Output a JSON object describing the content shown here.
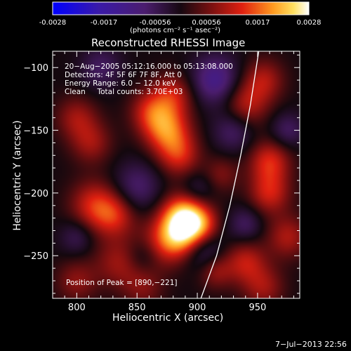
{
  "colorbar": {
    "ticks": [
      "-0.0028",
      "-0.0017",
      "-0.00056",
      "0.00056",
      "0.0017",
      "0.0028"
    ],
    "unit_label": "(photons cm⁻² s⁻¹ asec⁻²)"
  },
  "chart_data": {
    "type": "heatmap",
    "title": "Reconstructed RHESSI Image",
    "xlabel": "Heliocentric X (arcsec)",
    "ylabel": "Heliocentric Y (arcsec)",
    "xlim": [
      780,
      985
    ],
    "ylim": [
      -284,
      -87
    ],
    "xticks": [
      800,
      850,
      900,
      950
    ],
    "yticks": [
      -100,
      -150,
      -200,
      -250
    ],
    "xtick_labels": [
      "800",
      "850",
      "900",
      "950"
    ],
    "ytick_labels": [
      "−100",
      "−150",
      "−200",
      "−250"
    ],
    "color_range": [
      -0.0028,
      0.0028
    ],
    "annotations": [
      "20−Aug−2005 05:12:16.000 to 05:13:08.000",
      "Detectors: 4F 5F 6F 7F 8F, Att 0",
      "Energy Range: 6.0 − 12.0 keV",
      "Clean     Total counts: 3.70E+03"
    ],
    "peak_label": "Position of Peak = [890,−221]",
    "peak": [
      890,
      -221
    ],
    "limb_curve": [
      [
        903,
        -284
      ],
      [
        916,
        -250
      ],
      [
        927,
        -210
      ],
      [
        936,
        -170
      ],
      [
        944,
        -130
      ],
      [
        951,
        -87
      ]
    ],
    "sources": [
      {
        "x": 890,
        "y": -221,
        "v": 0.0028,
        "r": 13
      },
      {
        "x": 886,
        "y": -236,
        "v": 0.0012,
        "r": 12
      },
      {
        "x": 870,
        "y": -240,
        "v": 0.0009,
        "r": 14
      },
      {
        "x": 904,
        "y": -227,
        "v": 0.0009,
        "r": 10
      },
      {
        "x": 815,
        "y": -210,
        "v": 0.0012,
        "r": 14
      },
      {
        "x": 832,
        "y": -218,
        "v": 0.001,
        "r": 12
      },
      {
        "x": 875,
        "y": -150,
        "v": 0.0016,
        "r": 13
      },
      {
        "x": 885,
        "y": -170,
        "v": 0.0011,
        "r": 12
      },
      {
        "x": 862,
        "y": -135,
        "v": 0.0011,
        "r": 12
      },
      {
        "x": 880,
        "y": -122,
        "v": 0.001,
        "r": 12
      },
      {
        "x": 940,
        "y": -130,
        "v": 0.001,
        "r": 13
      },
      {
        "x": 955,
        "y": -110,
        "v": 0.0009,
        "r": 12
      },
      {
        "x": 960,
        "y": -175,
        "v": 0.0012,
        "r": 12
      },
      {
        "x": 960,
        "y": -200,
        "v": 0.0011,
        "r": 12
      },
      {
        "x": 975,
        "y": -235,
        "v": 0.0009,
        "r": 12
      },
      {
        "x": 940,
        "y": -255,
        "v": 0.001,
        "r": 12
      },
      {
        "x": 955,
        "y": -275,
        "v": 0.0008,
        "r": 12
      },
      {
        "x": 800,
        "y": -140,
        "v": 0.0008,
        "r": 12
      },
      {
        "x": 812,
        "y": -160,
        "v": 0.0008,
        "r": 12
      },
      {
        "x": 835,
        "y": -255,
        "v": 0.0008,
        "r": 14
      },
      {
        "x": 800,
        "y": -270,
        "v": 0.0007,
        "r": 12
      },
      {
        "x": 915,
        "y": -262,
        "v": 0.0008,
        "r": 10
      },
      {
        "x": 855,
        "y": -275,
        "v": 0.0006,
        "r": 12
      },
      {
        "x": 920,
        "y": -185,
        "v": 0.0006,
        "r": 10
      },
      {
        "x": 915,
        "y": -110,
        "v": -0.0012,
        "r": 14
      },
      {
        "x": 850,
        "y": -195,
        "v": -0.0008,
        "r": 14
      },
      {
        "x": 905,
        "y": -245,
        "v": -0.0009,
        "r": 12
      },
      {
        "x": 930,
        "y": -150,
        "v": -0.0008,
        "r": 12
      },
      {
        "x": 820,
        "y": -100,
        "v": -0.0007,
        "r": 12
      },
      {
        "x": 975,
        "y": -150,
        "v": -0.0007,
        "r": 10
      },
      {
        "x": 855,
        "y": -250,
        "v": -0.0006,
        "r": 10
      },
      {
        "x": 940,
        "y": -225,
        "v": -0.0007,
        "r": 10
      },
      {
        "x": 900,
        "y": -198,
        "v": -0.0006,
        "r": 10
      },
      {
        "x": 800,
        "y": -235,
        "v": -0.0006,
        "r": 10
      }
    ]
  },
  "timestamp": "7−Jul−2013 22:56"
}
